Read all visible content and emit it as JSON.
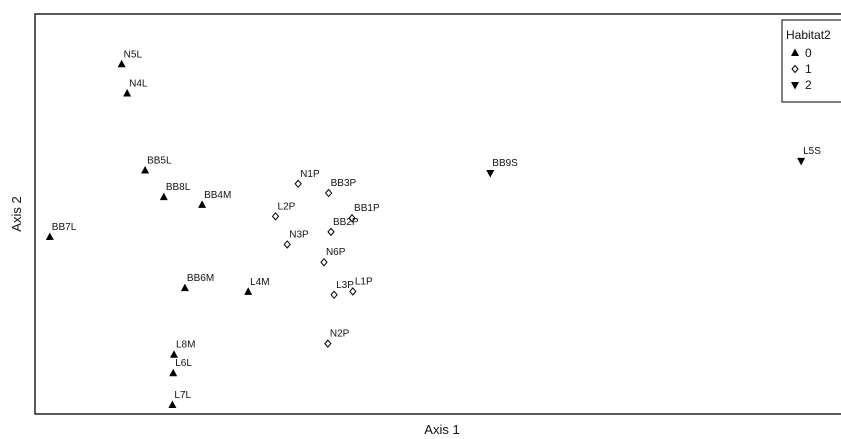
{
  "chart_data": {
    "type": "scatter",
    "xlabel": "Axis 1",
    "ylabel": "Axis 2",
    "grid": false,
    "xlim": [
      0,
      100
    ],
    "ylim": [
      0,
      100
    ],
    "legend": {
      "title": "Habitat2",
      "placement": "top-right",
      "entries": [
        {
          "label": "0",
          "marker": "triangle-up"
        },
        {
          "label": "1",
          "marker": "diamond-open"
        },
        {
          "label": "2",
          "marker": "triangle-down"
        }
      ]
    },
    "series": [
      {
        "name": "0",
        "marker": "triangle-up",
        "points": [
          {
            "label": "N5L",
            "x": 10.2,
            "y": 92.9
          },
          {
            "label": "N4L",
            "x": 10.9,
            "y": 85.0
          },
          {
            "label": "BB5L",
            "x": 13.2,
            "y": 64.2
          },
          {
            "label": "BB8L",
            "x": 15.6,
            "y": 57.0
          },
          {
            "label": "BB4M",
            "x": 20.5,
            "y": 54.9
          },
          {
            "label": "BB7L",
            "x": 1.0,
            "y": 46.2
          },
          {
            "label": "BB6M",
            "x": 18.3,
            "y": 32.4
          },
          {
            "label": "L4M",
            "x": 26.4,
            "y": 31.4
          },
          {
            "label": "L8M",
            "x": 16.9,
            "y": 14.4
          },
          {
            "label": "L6L",
            "x": 16.8,
            "y": 9.4
          },
          {
            "label": "L7L",
            "x": 16.7,
            "y": 0.8
          }
        ]
      },
      {
        "name": "1",
        "marker": "diamond-open",
        "points": [
          {
            "label": "N1P",
            "x": 32.8,
            "y": 60.6
          },
          {
            "label": "BB3P",
            "x": 36.7,
            "y": 58.1
          },
          {
            "label": "L2P",
            "x": 29.9,
            "y": 51.8
          },
          {
            "label": "BB1P",
            "x": 39.7,
            "y": 51.3
          },
          {
            "label": "BB2P",
            "x": 37.0,
            "y": 47.6
          },
          {
            "label": "N3P",
            "x": 31.4,
            "y": 44.2
          },
          {
            "label": "N6P",
            "x": 36.1,
            "y": 39.4
          },
          {
            "label": "L1P",
            "x": 39.8,
            "y": 31.5
          },
          {
            "label": "L3P",
            "x": 37.4,
            "y": 30.6
          },
          {
            "label": "N2P",
            "x": 36.6,
            "y": 17.4
          }
        ]
      },
      {
        "name": "2",
        "marker": "triangle-down",
        "points": [
          {
            "label": "BB9S",
            "x": 57.4,
            "y": 63.5
          },
          {
            "label": "L5S",
            "x": 97.2,
            "y": 66.8
          }
        ]
      }
    ]
  }
}
